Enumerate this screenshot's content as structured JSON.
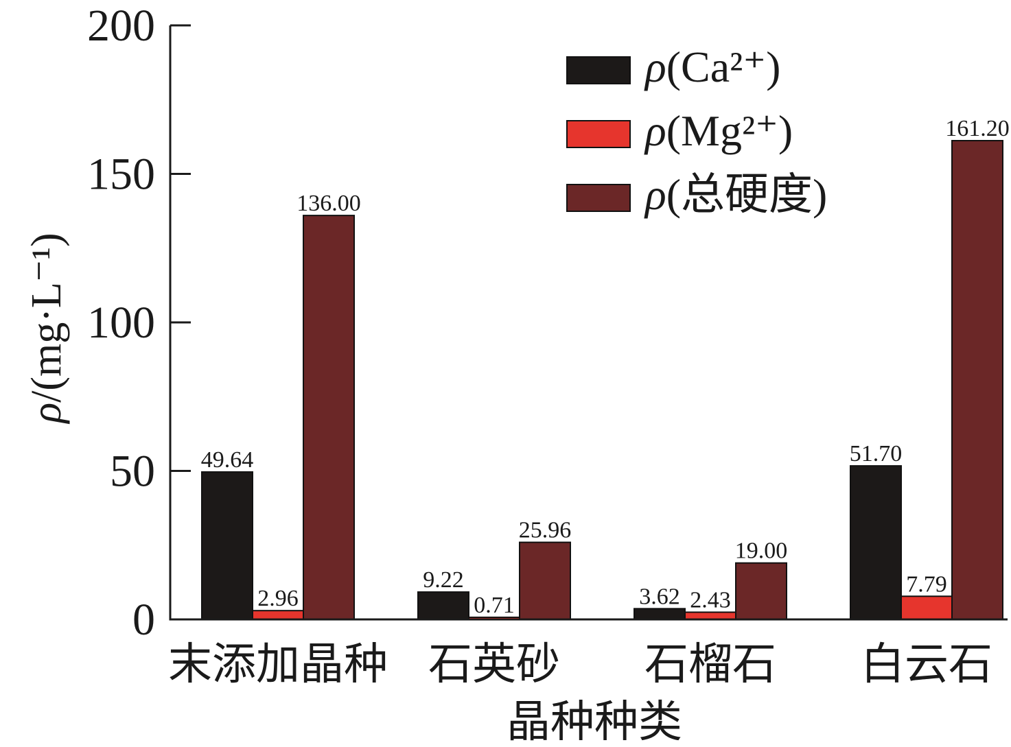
{
  "chart_data": {
    "type": "bar",
    "categories": [
      "末添加晶种",
      "石英砂",
      "石榴石",
      "白云石"
    ],
    "series": [
      {
        "name": "ρ(Ca²⁺)",
        "color": "#1c1918",
        "values": [
          49.64,
          9.22,
          3.62,
          51.7
        ]
      },
      {
        "name": "ρ(Mg²⁺)",
        "color": "#e6352d",
        "values": [
          2.96,
          0.71,
          2.43,
          7.79
        ]
      },
      {
        "name": "ρ(总硬度)",
        "color": "#6b2727",
        "values": [
          136.0,
          25.96,
          19.0,
          161.2
        ]
      }
    ],
    "xlabel": "晶种种类",
    "ylabel": "ρ/(mg·L⁻¹)",
    "ylim": [
      0,
      200
    ],
    "yticks": [
      0,
      50,
      100,
      150,
      200
    ],
    "data_labels": true,
    "grid": false,
    "legend": "top-right"
  }
}
